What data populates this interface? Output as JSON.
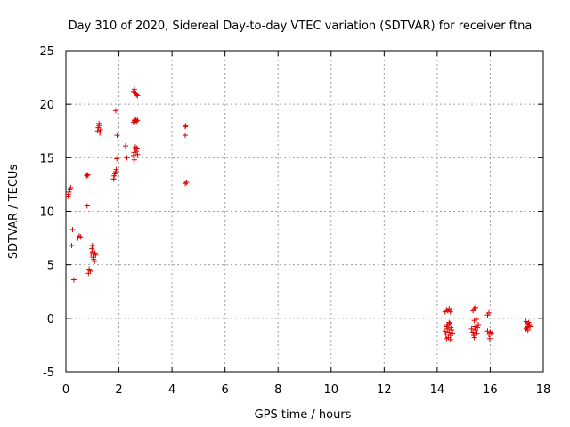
{
  "chart_data": {
    "type": "scatter",
    "title": "Day 310 of 2020, Sidereal Day-to-day VTEC variation (SDTVAR) for receiver ftna",
    "xlabel": "GPS time / hours",
    "ylabel": "SDTVAR / TECUs",
    "xlim": [
      0,
      18
    ],
    "ylim": [
      -5,
      25
    ],
    "xticks": [
      "0",
      "2",
      "4",
      "6",
      "8",
      "10",
      "12",
      "14",
      "16",
      "18"
    ],
    "yticks": [
      "-5",
      "0",
      "5",
      "10",
      "15",
      "20",
      "25"
    ],
    "grid": true,
    "marker": "+",
    "colors": {
      "points": "#e00000",
      "grid": "#a0a0a0",
      "axis": "#000000"
    },
    "series": [
      {
        "name": "SDTVAR",
        "points": [
          [
            0.1,
            11.6
          ],
          [
            0.12,
            11.8
          ],
          [
            0.15,
            12.0
          ],
          [
            0.18,
            12.2
          ],
          [
            0.08,
            11.4
          ],
          [
            0.25,
            8.3
          ],
          [
            0.22,
            6.8
          ],
          [
            0.3,
            3.6
          ],
          [
            0.45,
            7.5
          ],
          [
            0.5,
            7.7
          ],
          [
            0.55,
            7.6
          ],
          [
            0.78,
            13.3
          ],
          [
            0.8,
            13.4
          ],
          [
            0.83,
            13.4
          ],
          [
            0.8,
            10.5
          ],
          [
            0.85,
            4.2
          ],
          [
            0.88,
            4.6
          ],
          [
            0.92,
            4.4
          ],
          [
            0.95,
            6.0
          ],
          [
            0.98,
            6.5
          ],
          [
            1.0,
            6.8
          ],
          [
            1.02,
            5.7
          ],
          [
            1.05,
            5.5
          ],
          [
            1.08,
            5.3
          ],
          [
            1.1,
            6.1
          ],
          [
            1.12,
            5.9
          ],
          [
            1.0,
            6.2
          ],
          [
            1.2,
            17.5
          ],
          [
            1.22,
            17.8
          ],
          [
            1.25,
            18.0
          ],
          [
            1.28,
            17.3
          ],
          [
            1.3,
            17.6
          ],
          [
            1.25,
            18.2
          ],
          [
            1.8,
            13.0
          ],
          [
            1.82,
            13.3
          ],
          [
            1.85,
            13.5
          ],
          [
            1.88,
            13.7
          ],
          [
            1.9,
            13.9
          ],
          [
            1.92,
            14.9
          ],
          [
            1.93,
            17.1
          ],
          [
            1.88,
            19.4
          ],
          [
            2.25,
            16.1
          ],
          [
            2.3,
            15.0
          ],
          [
            2.55,
            15.2
          ],
          [
            2.57,
            15.5
          ],
          [
            2.6,
            15.8
          ],
          [
            2.62,
            16.0
          ],
          [
            2.58,
            14.8
          ],
          [
            2.65,
            15.6
          ],
          [
            2.68,
            15.9
          ],
          [
            2.7,
            15.3
          ],
          [
            2.55,
            18.3
          ],
          [
            2.58,
            18.5
          ],
          [
            2.6,
            18.4
          ],
          [
            2.63,
            18.6
          ],
          [
            2.66,
            18.4
          ],
          [
            2.7,
            18.5
          ],
          [
            2.55,
            21.2
          ],
          [
            2.58,
            21.4
          ],
          [
            2.6,
            21.1
          ],
          [
            2.63,
            21.0
          ],
          [
            2.66,
            20.9
          ],
          [
            2.7,
            20.8
          ],
          [
            4.5,
            17.9
          ],
          [
            4.52,
            18.0
          ],
          [
            4.5,
            17.1
          ],
          [
            4.5,
            12.6
          ],
          [
            4.55,
            12.7
          ],
          [
            14.3,
            0.6
          ],
          [
            14.35,
            0.8
          ],
          [
            14.4,
            0.7
          ],
          [
            14.45,
            0.9
          ],
          [
            14.5,
            0.6
          ],
          [
            14.55,
            0.8
          ],
          [
            14.3,
            -1.2
          ],
          [
            14.33,
            -1.5
          ],
          [
            14.36,
            -0.8
          ],
          [
            14.4,
            -1.0
          ],
          [
            14.42,
            -1.8
          ],
          [
            14.45,
            -1.3
          ],
          [
            14.48,
            -0.5
          ],
          [
            14.5,
            -1.6
          ],
          [
            14.52,
            -0.9
          ],
          [
            14.55,
            -1.1
          ],
          [
            14.58,
            -1.4
          ],
          [
            14.35,
            -1.9
          ],
          [
            14.45,
            -0.4
          ],
          [
            14.5,
            -2.0
          ],
          [
            14.38,
            -0.6
          ],
          [
            15.35,
            0.7
          ],
          [
            15.4,
            0.9
          ],
          [
            15.45,
            1.0
          ],
          [
            15.4,
            -0.2
          ],
          [
            15.48,
            -0.1
          ],
          [
            15.3,
            -1.0
          ],
          [
            15.35,
            -1.3
          ],
          [
            15.38,
            -1.6
          ],
          [
            15.42,
            -0.8
          ],
          [
            15.45,
            -1.1
          ],
          [
            15.5,
            -1.4
          ],
          [
            15.55,
            -0.6
          ],
          [
            15.4,
            -1.8
          ],
          [
            15.52,
            -0.9
          ],
          [
            15.9,
            0.3
          ],
          [
            15.95,
            0.5
          ],
          [
            15.9,
            -1.2
          ],
          [
            15.95,
            -1.5
          ],
          [
            16.0,
            -1.3
          ],
          [
            16.05,
            -1.4
          ],
          [
            15.98,
            -1.9
          ],
          [
            17.35,
            -0.3
          ],
          [
            17.4,
            -0.5
          ],
          [
            17.45,
            -0.7
          ],
          [
            17.38,
            -0.9
          ],
          [
            17.42,
            -1.1
          ],
          [
            17.48,
            -0.6
          ],
          [
            17.5,
            -0.8
          ],
          [
            17.35,
            -1.0
          ],
          [
            17.45,
            -0.4
          ]
        ]
      }
    ]
  }
}
